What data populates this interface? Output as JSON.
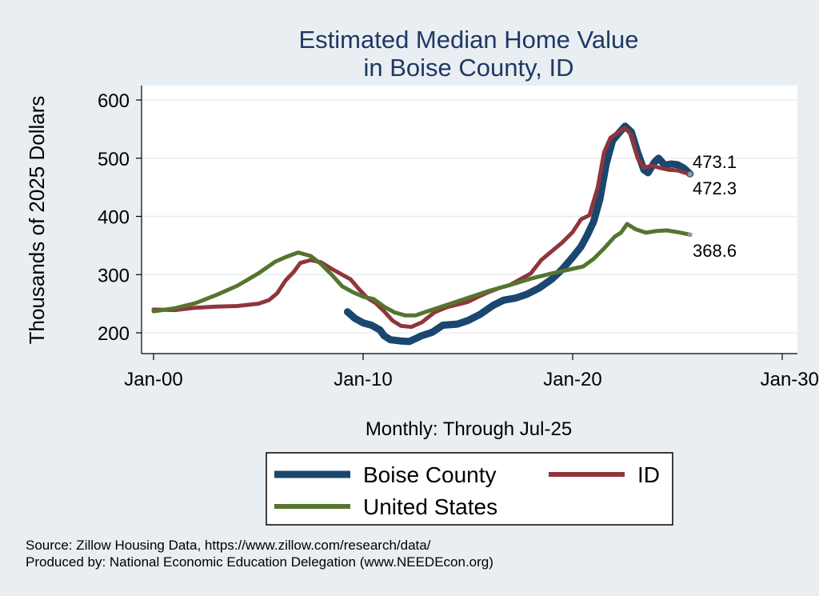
{
  "chart_data": {
    "type": "line",
    "title_lines": [
      "Estimated Median Home Value",
      "in Boise County, ID"
    ],
    "ylabel": "Thousands of 2025 Dollars",
    "xlabel": "Monthly: Through Jul-25",
    "ylim": [
      180,
      610
    ],
    "yticks": [
      200,
      300,
      400,
      500,
      600
    ],
    "xlim": [
      2000,
      2030
    ],
    "xticks": [
      {
        "value": 2000,
        "label": "Jan-00"
      },
      {
        "value": 2010,
        "label": "Jan-10"
      },
      {
        "value": 2020,
        "label": "Jan-20"
      },
      {
        "value": 2030,
        "label": "Jan-30"
      }
    ],
    "grid": true,
    "legend_position": "bottom",
    "series": [
      {
        "name": "Boise County",
        "color": "#1a476f",
        "end_label": "473.1",
        "points": [
          [
            2009.25,
            236
          ],
          [
            2009.6,
            225
          ],
          [
            2010.0,
            217
          ],
          [
            2010.4,
            213
          ],
          [
            2010.8,
            205
          ],
          [
            2011.0,
            195
          ],
          [
            2011.3,
            188
          ],
          [
            2011.8,
            186
          ],
          [
            2012.2,
            185
          ],
          [
            2012.5,
            190
          ],
          [
            2012.8,
            195
          ],
          [
            2013.3,
            201
          ],
          [
            2013.8,
            213
          ],
          [
            2014.5,
            215
          ],
          [
            2015.0,
            221
          ],
          [
            2015.6,
            232
          ],
          [
            2016.2,
            247
          ],
          [
            2016.7,
            256
          ],
          [
            2017.3,
            260
          ],
          [
            2017.8,
            266
          ],
          [
            2018.4,
            277
          ],
          [
            2019.0,
            292
          ],
          [
            2019.5,
            309
          ],
          [
            2020.0,
            330
          ],
          [
            2020.4,
            348
          ],
          [
            2020.7,
            368
          ],
          [
            2021.0,
            391
          ],
          [
            2021.3,
            430
          ],
          [
            2021.6,
            490
          ],
          [
            2021.9,
            530
          ],
          [
            2022.2,
            543
          ],
          [
            2022.5,
            555
          ],
          [
            2022.8,
            545
          ],
          [
            2023.1,
            510
          ],
          [
            2023.4,
            480
          ],
          [
            2023.6,
            475
          ],
          [
            2023.9,
            493
          ],
          [
            2024.1,
            500
          ],
          [
            2024.4,
            488
          ],
          [
            2024.7,
            490
          ],
          [
            2025.0,
            489
          ],
          [
            2025.3,
            483
          ],
          [
            2025.6,
            473.1
          ]
        ]
      },
      {
        "name": "ID",
        "color": "#90353b",
        "end_label": "472.3",
        "points": [
          [
            2000.0,
            240
          ],
          [
            2001.0,
            239
          ],
          [
            2002.0,
            243
          ],
          [
            2003.0,
            245
          ],
          [
            2004.0,
            246
          ],
          [
            2005.0,
            250
          ],
          [
            2005.5,
            256
          ],
          [
            2005.9,
            268
          ],
          [
            2006.3,
            290
          ],
          [
            2006.7,
            305
          ],
          [
            2007.0,
            320
          ],
          [
            2007.5,
            325
          ],
          [
            2008.0,
            321
          ],
          [
            2008.5,
            310
          ],
          [
            2009.0,
            300
          ],
          [
            2009.4,
            292
          ],
          [
            2009.8,
            275
          ],
          [
            2010.2,
            260
          ],
          [
            2010.6,
            251
          ],
          [
            2011.0,
            237
          ],
          [
            2011.4,
            221
          ],
          [
            2011.8,
            212
          ],
          [
            2012.3,
            210
          ],
          [
            2012.8,
            218
          ],
          [
            2013.4,
            235
          ],
          [
            2014.0,
            244
          ],
          [
            2015.0,
            253
          ],
          [
            2015.5,
            262
          ],
          [
            2016.0,
            270
          ],
          [
            2016.5,
            277
          ],
          [
            2017.0,
            282
          ],
          [
            2017.5,
            292
          ],
          [
            2018.0,
            302
          ],
          [
            2018.5,
            325
          ],
          [
            2019.0,
            340
          ],
          [
            2019.5,
            355
          ],
          [
            2020.0,
            373
          ],
          [
            2020.4,
            395
          ],
          [
            2020.8,
            402
          ],
          [
            2021.2,
            450
          ],
          [
            2021.5,
            510
          ],
          [
            2021.8,
            535
          ],
          [
            2022.2,
            545
          ],
          [
            2022.5,
            552
          ],
          [
            2022.8,
            540
          ],
          [
            2023.1,
            500
          ],
          [
            2023.4,
            484
          ],
          [
            2023.8,
            487
          ],
          [
            2024.2,
            483
          ],
          [
            2024.6,
            480
          ],
          [
            2025.0,
            479
          ],
          [
            2025.6,
            472.3
          ]
        ]
      },
      {
        "name": "United States",
        "color": "#55752f",
        "end_label": "368.6",
        "points": [
          [
            2000.0,
            237
          ],
          [
            2001.0,
            242
          ],
          [
            2002.0,
            251
          ],
          [
            2003.0,
            265
          ],
          [
            2004.0,
            281
          ],
          [
            2005.0,
            302
          ],
          [
            2005.8,
            322
          ],
          [
            2006.3,
            330
          ],
          [
            2006.9,
            338
          ],
          [
            2007.5,
            332
          ],
          [
            2008.0,
            318
          ],
          [
            2008.5,
            300
          ],
          [
            2009.0,
            280
          ],
          [
            2009.5,
            270
          ],
          [
            2010.0,
            262
          ],
          [
            2010.5,
            258
          ],
          [
            2011.0,
            245
          ],
          [
            2011.5,
            235
          ],
          [
            2012.0,
            230
          ],
          [
            2012.5,
            230
          ],
          [
            2013.0,
            236
          ],
          [
            2014.0,
            248
          ],
          [
            2015.0,
            260
          ],
          [
            2016.0,
            272
          ],
          [
            2017.0,
            282
          ],
          [
            2018.0,
            293
          ],
          [
            2019.0,
            302
          ],
          [
            2020.0,
            310
          ],
          [
            2020.5,
            314
          ],
          [
            2021.0,
            327
          ],
          [
            2021.5,
            345
          ],
          [
            2022.0,
            365
          ],
          [
            2022.3,
            372
          ],
          [
            2022.6,
            387
          ],
          [
            2023.0,
            378
          ],
          [
            2023.5,
            372
          ],
          [
            2024.0,
            375
          ],
          [
            2024.5,
            376
          ],
          [
            2025.0,
            373
          ],
          [
            2025.6,
            368.6
          ]
        ]
      }
    ]
  },
  "footer": {
    "source": "Source: Zillow Housing Data, https://www.zillow.com/research/data/",
    "produced": "Produced by: National Economic Education Delegation (www.NEEDEcon.org)"
  }
}
